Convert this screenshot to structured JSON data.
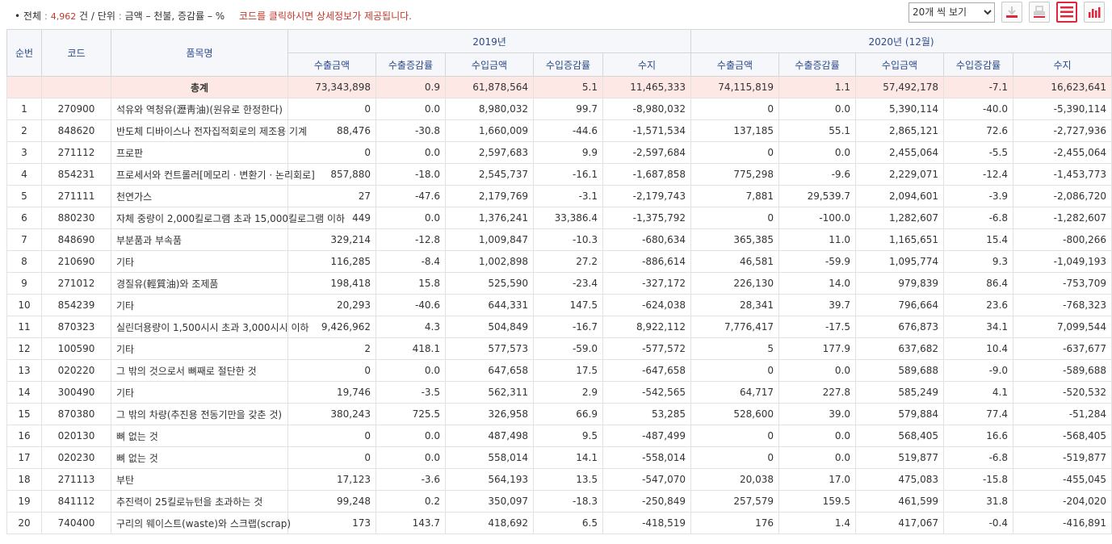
{
  "summary": {
    "bullet": "•",
    "total_label": "전체",
    "colon": ":",
    "total_count": "4,962",
    "count_unit": "건",
    "slash": "/",
    "unit_label": "단위",
    "unit_value": "금액 – 천불, 증감률 – %",
    "note": "코드를 클릭하시면 상세정보가 제공됩니다."
  },
  "controls": {
    "page_size_selected": "20개 씩 보기",
    "page_size_options": [
      "20개 씩 보기"
    ],
    "icons": [
      "download-icon",
      "print-icon",
      "list-view-icon",
      "chart-view-icon"
    ],
    "active_color": "#e0263a"
  },
  "table": {
    "headers": {
      "rank": "순번",
      "code": "코드",
      "name": "품목명",
      "period1": "2019년",
      "period2": "2020년 (12월)",
      "sub": [
        "수출금액",
        "수출증감률",
        "수입금액",
        "수입증감률",
        "수지"
      ]
    },
    "total": {
      "label": "총계",
      "values": [
        "73,343,898",
        "0.9",
        "61,878,564",
        "5.1",
        "11,465,333",
        "74,115,819",
        "1.1",
        "57,492,178",
        "-7.1",
        "16,623,641"
      ]
    },
    "rows": [
      {
        "rank": "1",
        "code": "270900",
        "name": "석유와 역청유(瀝靑油)(원유로 한정한다)",
        "v": [
          "0",
          "0.0",
          "8,980,032",
          "99.7",
          "-8,980,032",
          "0",
          "0.0",
          "5,390,114",
          "-40.0",
          "-5,390,114"
        ]
      },
      {
        "rank": "2",
        "code": "848620",
        "name": "반도체 디바이스나 전자집적회로의 제조용 기계",
        "v": [
          "88,476",
          "-30.8",
          "1,660,009",
          "-44.6",
          "-1,571,534",
          "137,185",
          "55.1",
          "2,865,121",
          "72.6",
          "-2,727,936"
        ]
      },
      {
        "rank": "3",
        "code": "271112",
        "name": "프로판",
        "v": [
          "0",
          "0.0",
          "2,597,683",
          "9.9",
          "-2,597,684",
          "0",
          "0.0",
          "2,455,064",
          "-5.5",
          "-2,455,064"
        ]
      },
      {
        "rank": "4",
        "code": "854231",
        "name": "프로세서와 컨트롤러[메모리 · 변환기 · 논리회로]",
        "v": [
          "857,880",
          "-18.0",
          "2,545,737",
          "-16.1",
          "-1,687,858",
          "775,298",
          "-9.6",
          "2,229,071",
          "-12.4",
          "-1,453,773"
        ]
      },
      {
        "rank": "5",
        "code": "271111",
        "name": "천연가스",
        "v": [
          "27",
          "-47.6",
          "2,179,769",
          "-3.1",
          "-2,179,743",
          "7,881",
          "29,539.7",
          "2,094,601",
          "-3.9",
          "-2,086,720"
        ]
      },
      {
        "rank": "6",
        "code": "880230",
        "name": "자체 중량이 2,000킬로그램 초과 15,000킬로그램 이하",
        "v": [
          "449",
          "0.0",
          "1,376,241",
          "33,386.4",
          "-1,375,792",
          "0",
          "-100.0",
          "1,282,607",
          "-6.8",
          "-1,282,607"
        ]
      },
      {
        "rank": "7",
        "code": "848690",
        "name": "부분품과 부속품",
        "v": [
          "329,214",
          "-12.8",
          "1,009,847",
          "-10.3",
          "-680,634",
          "365,385",
          "11.0",
          "1,165,651",
          "15.4",
          "-800,266"
        ]
      },
      {
        "rank": "8",
        "code": "210690",
        "name": "기타",
        "v": [
          "116,285",
          "-8.4",
          "1,002,898",
          "27.2",
          "-886,614",
          "46,581",
          "-59.9",
          "1,095,774",
          "9.3",
          "-1,049,193"
        ]
      },
      {
        "rank": "9",
        "code": "271012",
        "name": "경질유(輕質油)와 조제품",
        "v": [
          "198,418",
          "15.8",
          "525,590",
          "-23.4",
          "-327,172",
          "226,130",
          "14.0",
          "979,839",
          "86.4",
          "-753,709"
        ]
      },
      {
        "rank": "10",
        "code": "854239",
        "name": "기타",
        "v": [
          "20,293",
          "-40.6",
          "644,331",
          "147.5",
          "-624,038",
          "28,341",
          "39.7",
          "796,664",
          "23.6",
          "-768,323"
        ]
      },
      {
        "rank": "11",
        "code": "870323",
        "name": "실린더용량이 1,500시시 초과 3,000시시 이하",
        "v": [
          "9,426,962",
          "4.3",
          "504,849",
          "-16.7",
          "8,922,112",
          "7,776,417",
          "-17.5",
          "676,873",
          "34.1",
          "7,099,544"
        ]
      },
      {
        "rank": "12",
        "code": "100590",
        "name": "기타",
        "v": [
          "2",
          "418.1",
          "577,573",
          "-59.0",
          "-577,572",
          "5",
          "177.9",
          "637,682",
          "10.4",
          "-637,677"
        ]
      },
      {
        "rank": "13",
        "code": "020220",
        "name": "그 밖의 것으로서 뼈째로 절단한 것",
        "v": [
          "0",
          "0.0",
          "647,658",
          "17.5",
          "-647,658",
          "0",
          "0.0",
          "589,688",
          "-9.0",
          "-589,688"
        ]
      },
      {
        "rank": "14",
        "code": "300490",
        "name": "기타",
        "v": [
          "19,746",
          "-3.5",
          "562,311",
          "2.9",
          "-542,565",
          "64,717",
          "227.8",
          "585,249",
          "4.1",
          "-520,532"
        ]
      },
      {
        "rank": "15",
        "code": "870380",
        "name": "그 밖의 차량(추진용 전동기만을 갖춘 것)",
        "v": [
          "380,243",
          "725.5",
          "326,958",
          "66.9",
          "53,285",
          "528,600",
          "39.0",
          "579,884",
          "77.4",
          "-51,284"
        ]
      },
      {
        "rank": "16",
        "code": "020130",
        "name": "뼈 없는 것",
        "v": [
          "0",
          "0.0",
          "487,498",
          "9.5",
          "-487,499",
          "0",
          "0.0",
          "568,405",
          "16.6",
          "-568,405"
        ]
      },
      {
        "rank": "17",
        "code": "020230",
        "name": "뼈 없는 것",
        "v": [
          "0",
          "0.0",
          "558,014",
          "14.1",
          "-558,014",
          "0",
          "0.0",
          "519,877",
          "-6.8",
          "-519,877"
        ]
      },
      {
        "rank": "18",
        "code": "271113",
        "name": "부탄",
        "v": [
          "17,123",
          "-3.6",
          "564,193",
          "13.5",
          "-547,070",
          "20,038",
          "17.0",
          "475,083",
          "-15.8",
          "-455,045"
        ]
      },
      {
        "rank": "19",
        "code": "841112",
        "name": "추진력이 25킬로뉴턴을 초과하는 것",
        "v": [
          "99,248",
          "0.2",
          "350,097",
          "-18.3",
          "-250,849",
          "257,579",
          "159.5",
          "461,599",
          "31.8",
          "-204,020"
        ]
      },
      {
        "rank": "20",
        "code": "740400",
        "name": "구리의 웨이스트(waste)와 스크랩(scrap)",
        "v": [
          "173",
          "143.7",
          "418,692",
          "6.5",
          "-418,519",
          "176",
          "1.4",
          "417,067",
          "-0.4",
          "-416,891"
        ]
      }
    ]
  }
}
